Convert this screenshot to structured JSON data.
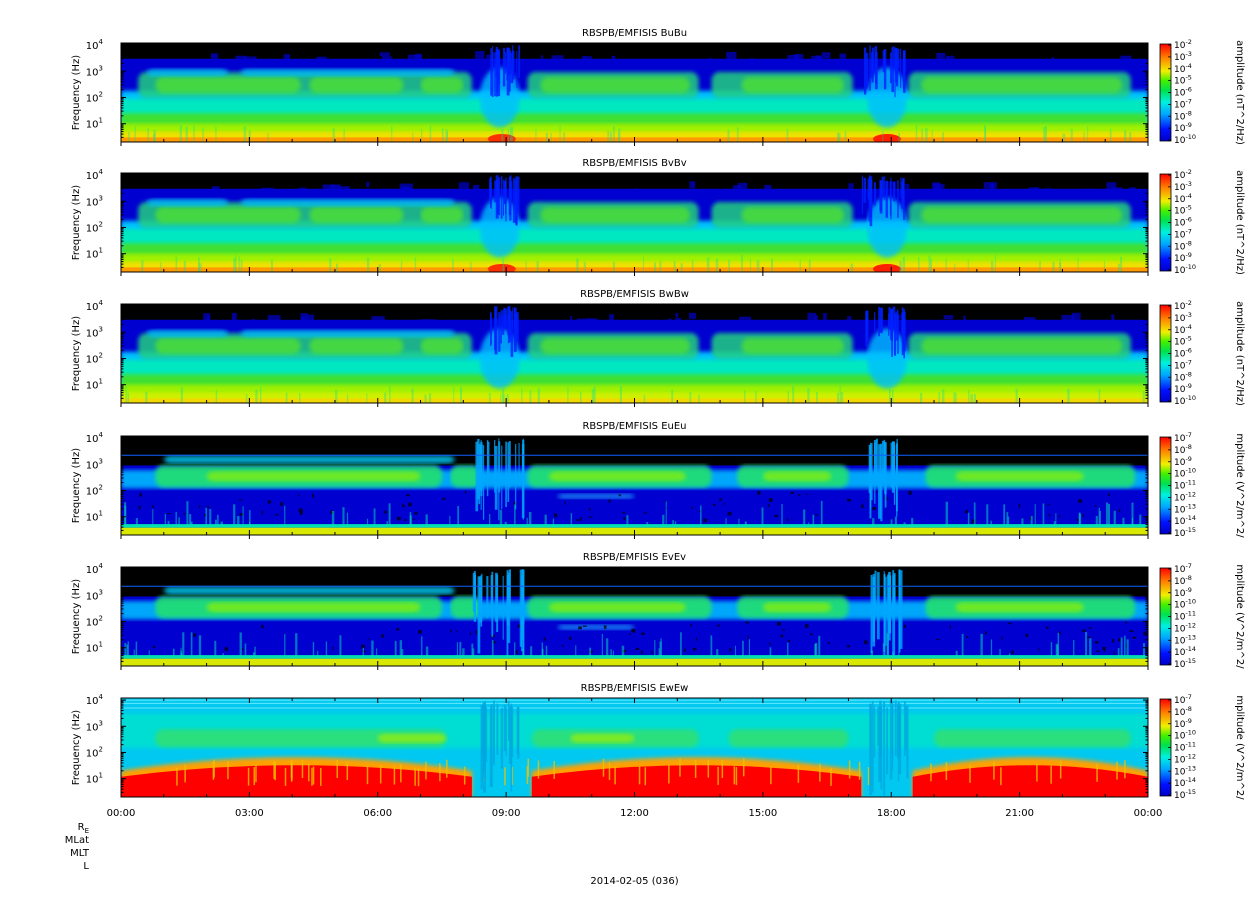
{
  "chart_data": {
    "type": "heatmap",
    "x_label": "2014-02-05 (036)",
    "x_ticks": [
      "00:00",
      "03:00",
      "06:00",
      "09:00",
      "12:00",
      "15:00",
      "18:00",
      "21:00",
      "00:00"
    ],
    "x_range_hours": [
      0,
      24
    ],
    "ephemeris_labels": [
      "R",
      "MLat",
      "MLT",
      "L"
    ],
    "ephemeris_subscript": "E",
    "colormap": "rainbow (blue-cyan-green-yellow-red), black = no signal",
    "panels": [
      {
        "title": "RBSPB/EMFISIS  BuBu",
        "ylabel": "Frequency (Hz)",
        "yscale": "log",
        "y_ticks": [
          {
            "base": "10",
            "exp": "1"
          },
          {
            "base": "10",
            "exp": "2"
          },
          {
            "base": "10",
            "exp": "3"
          },
          {
            "base": "10",
            "exp": "4"
          }
        ],
        "ylim": [
          2,
          12000
        ],
        "colorbar_label": "amplitude (nT^2/Hz)",
        "colorbar_ticks": [
          {
            "base": "10",
            "exp": "-2"
          },
          {
            "base": "10",
            "exp": "-3"
          },
          {
            "base": "10",
            "exp": "-4"
          },
          {
            "base": "10",
            "exp": "-5"
          },
          {
            "base": "10",
            "exp": "-6"
          },
          {
            "base": "10",
            "exp": "-7"
          },
          {
            "base": "10",
            "exp": "-8"
          },
          {
            "base": "10",
            "exp": "-9"
          },
          {
            "base": "10",
            "exp": "-10"
          }
        ],
        "mode": "mag"
      },
      {
        "title": "RBSPB/EMFISIS  BvBv",
        "ylabel": "Frequency (Hz)",
        "yscale": "log",
        "y_ticks": [
          {
            "base": "10",
            "exp": "1"
          },
          {
            "base": "10",
            "exp": "2"
          },
          {
            "base": "10",
            "exp": "3"
          },
          {
            "base": "10",
            "exp": "4"
          }
        ],
        "ylim": [
          2,
          12000
        ],
        "colorbar_label": "amplitude (nT^2/Hz)",
        "colorbar_ticks": [
          {
            "base": "10",
            "exp": "-2"
          },
          {
            "base": "10",
            "exp": "-3"
          },
          {
            "base": "10",
            "exp": "-4"
          },
          {
            "base": "10",
            "exp": "-5"
          },
          {
            "base": "10",
            "exp": "-6"
          },
          {
            "base": "10",
            "exp": "-7"
          },
          {
            "base": "10",
            "exp": "-8"
          },
          {
            "base": "10",
            "exp": "-9"
          },
          {
            "base": "10",
            "exp": "-10"
          }
        ],
        "mode": "mag"
      },
      {
        "title": "RBSPB/EMFISIS  BwBw",
        "ylabel": "Frequency (Hz)",
        "yscale": "log",
        "y_ticks": [
          {
            "base": "10",
            "exp": "1"
          },
          {
            "base": "10",
            "exp": "2"
          },
          {
            "base": "10",
            "exp": "3"
          },
          {
            "base": "10",
            "exp": "4"
          }
        ],
        "ylim": [
          2,
          12000
        ],
        "colorbar_label": "amplitude (nT^2/Hz)",
        "colorbar_ticks": [
          {
            "base": "10",
            "exp": "-2"
          },
          {
            "base": "10",
            "exp": "-3"
          },
          {
            "base": "10",
            "exp": "-4"
          },
          {
            "base": "10",
            "exp": "-5"
          },
          {
            "base": "10",
            "exp": "-6"
          },
          {
            "base": "10",
            "exp": "-7"
          },
          {
            "base": "10",
            "exp": "-8"
          },
          {
            "base": "10",
            "exp": "-9"
          },
          {
            "base": "10",
            "exp": "-10"
          }
        ],
        "mode": "magw"
      },
      {
        "title": "RBSPB/EMFISIS  EuEu",
        "ylabel": "Frequency (Hz)",
        "yscale": "log",
        "y_ticks": [
          {
            "base": "10",
            "exp": "1"
          },
          {
            "base": "10",
            "exp": "2"
          },
          {
            "base": "10",
            "exp": "3"
          },
          {
            "base": "10",
            "exp": "4"
          }
        ],
        "ylim": [
          2,
          12000
        ],
        "colorbar_label": "mplitude (V^2/m^2/",
        "colorbar_ticks": [
          {
            "base": "10",
            "exp": "-7"
          },
          {
            "base": "10",
            "exp": "-8"
          },
          {
            "base": "10",
            "exp": "-9"
          },
          {
            "base": "10",
            "exp": "-10"
          },
          {
            "base": "10",
            "exp": "-11"
          },
          {
            "base": "10",
            "exp": "-12"
          },
          {
            "base": "10",
            "exp": "-13"
          },
          {
            "base": "10",
            "exp": "-14"
          },
          {
            "base": "10",
            "exp": "-15"
          }
        ],
        "mode": "elec"
      },
      {
        "title": "RBSPB/EMFISIS  EvEv",
        "ylabel": "Frequency (Hz)",
        "yscale": "log",
        "y_ticks": [
          {
            "base": "10",
            "exp": "1"
          },
          {
            "base": "10",
            "exp": "2"
          },
          {
            "base": "10",
            "exp": "3"
          },
          {
            "base": "10",
            "exp": "4"
          }
        ],
        "ylim": [
          2,
          12000
        ],
        "colorbar_label": "mplitude (V^2/m^2/",
        "colorbar_ticks": [
          {
            "base": "10",
            "exp": "-7"
          },
          {
            "base": "10",
            "exp": "-8"
          },
          {
            "base": "10",
            "exp": "-9"
          },
          {
            "base": "10",
            "exp": "-10"
          },
          {
            "base": "10",
            "exp": "-11"
          },
          {
            "base": "10",
            "exp": "-12"
          },
          {
            "base": "10",
            "exp": "-13"
          },
          {
            "base": "10",
            "exp": "-14"
          },
          {
            "base": "10",
            "exp": "-15"
          }
        ],
        "mode": "elec"
      },
      {
        "title": "RBSPB/EMFISIS  EwEw",
        "ylabel": "Frequency (Hz)",
        "yscale": "log",
        "y_ticks": [
          {
            "base": "10",
            "exp": "1"
          },
          {
            "base": "10",
            "exp": "2"
          },
          {
            "base": "10",
            "exp": "3"
          },
          {
            "base": "10",
            "exp": "4"
          }
        ],
        "ylim": [
          2,
          12000
        ],
        "colorbar_label": "mplitude (V^2/m^2/",
        "colorbar_ticks": [
          {
            "base": "10",
            "exp": "-7"
          },
          {
            "base": "10",
            "exp": "-8"
          },
          {
            "base": "10",
            "exp": "-9"
          },
          {
            "base": "10",
            "exp": "-10"
          },
          {
            "base": "10",
            "exp": "-11"
          },
          {
            "base": "10",
            "exp": "-12"
          },
          {
            "base": "10",
            "exp": "-13"
          },
          {
            "base": "10",
            "exp": "-14"
          },
          {
            "base": "10",
            "exp": "-15"
          }
        ],
        "mode": "ew"
      }
    ]
  }
}
